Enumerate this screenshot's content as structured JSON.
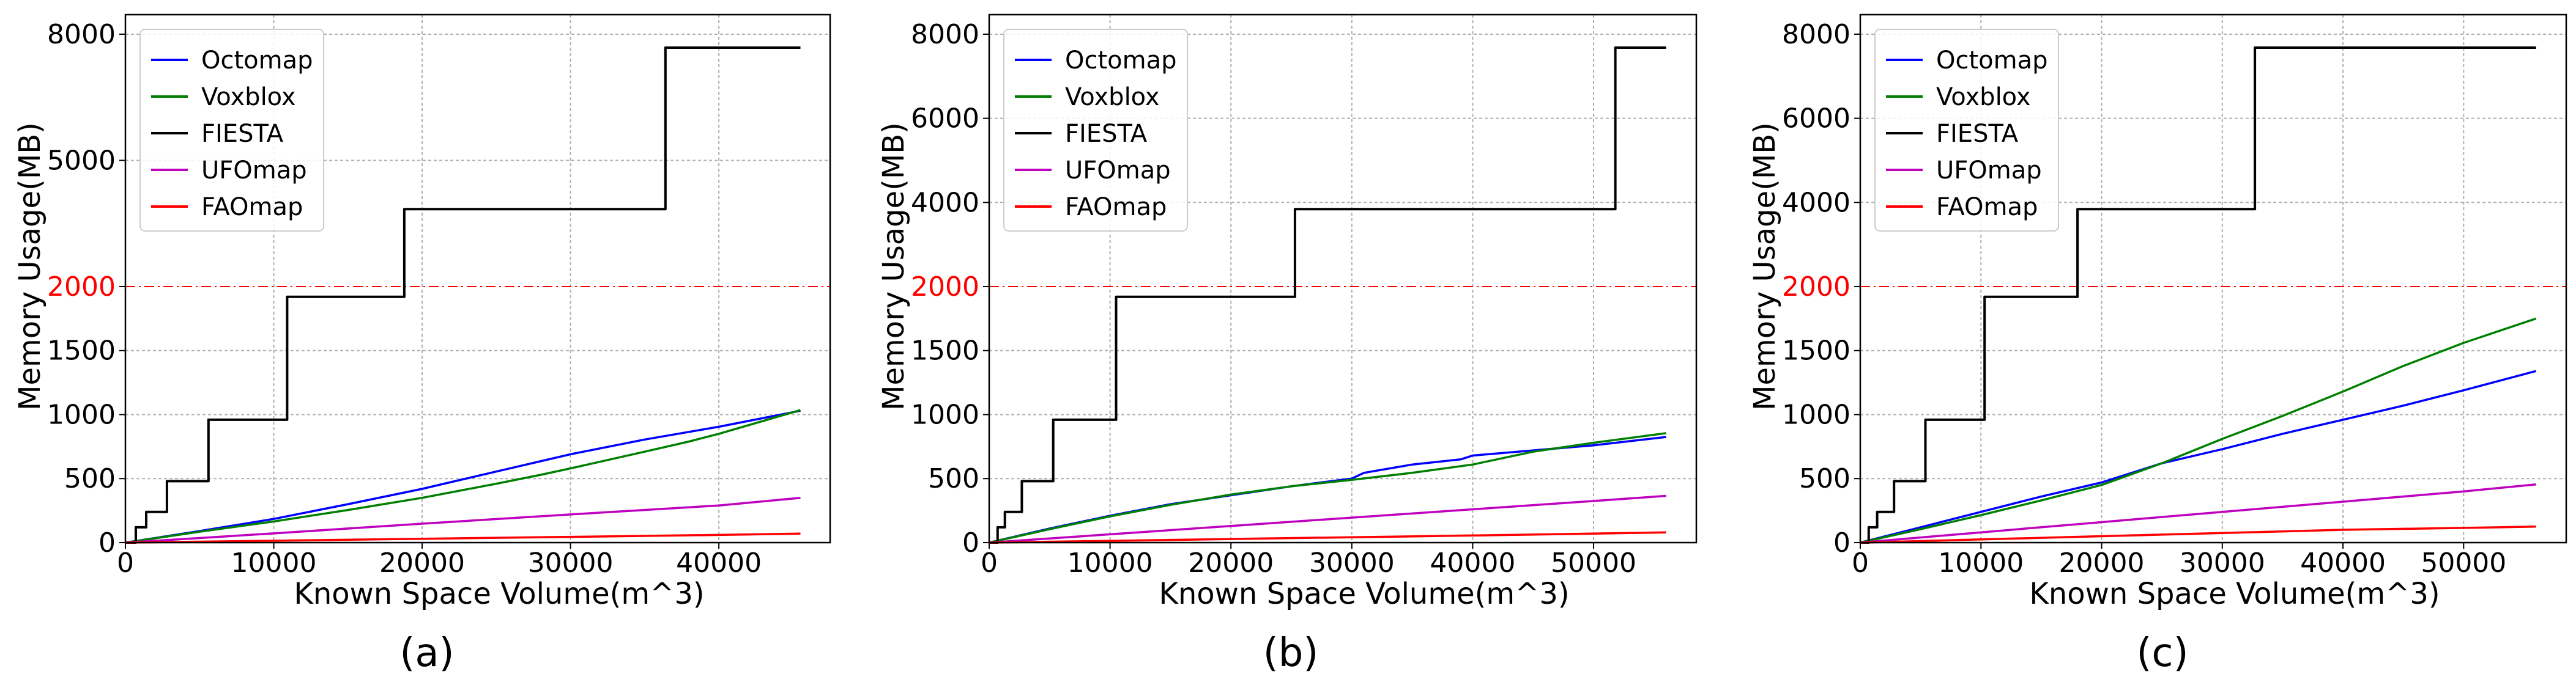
{
  "colors": {
    "Octomap": "#0000ff",
    "Voxblox": "#008000",
    "FIESTA": "#000000",
    "UFOmap": "#bf00bf",
    "FAOmap": "#ff0000",
    "threshold_line": "#ff0000",
    "threshold_tick": "#ff0000",
    "grid": "#b0b0b0"
  },
  "shared": {
    "ylabel": "Memory Usage(MB)",
    "xlabel": "Known Space Volume(m^3)",
    "threshold_mb": 2000
  },
  "chart_data": [
    {
      "type": "line",
      "caption": "(a)",
      "xlabel": "Known Space Volume(m^3)",
      "ylabel": "Memory Usage(MB)",
      "xlim": [
        0,
        47500
      ],
      "x_ticks": [
        0,
        10000,
        20000,
        30000,
        40000
      ],
      "y_scale": "piecewise: linear 0-2000 below threshold, linear 2000-8000 above",
      "y_ticks": [
        0,
        500,
        1000,
        1500,
        2000,
        5000,
        8000
      ],
      "y_tick_labels": [
        "0",
        "500",
        "1000",
        "1500",
        "2000",
        "5000",
        "8000"
      ],
      "threshold": 2000,
      "legend": {
        "position": "upper-left",
        "entries": [
          "Octomap",
          "Voxblox",
          "FIESTA",
          "UFOmap",
          "FAOmap"
        ]
      },
      "series": [
        {
          "name": "Octomap",
          "x": [
            0,
            5000,
            10000,
            15000,
            20000,
            25000,
            30000,
            35000,
            40000,
            45500
          ],
          "y": [
            0,
            90,
            185,
            300,
            420,
            555,
            690,
            805,
            905,
            1030
          ]
        },
        {
          "name": "Voxblox",
          "x": [
            0,
            5000,
            10000,
            15000,
            20000,
            25000,
            28000,
            30000,
            35000,
            38000,
            40000,
            45500
          ],
          "y": [
            0,
            85,
            165,
            255,
            350,
            460,
            530,
            580,
            710,
            790,
            850,
            1035
          ]
        },
        {
          "name": "FIESTA",
          "x": [
            0,
            700,
            700,
            1400,
            1400,
            2800,
            2800,
            5600,
            5600,
            10900,
            10900,
            18800,
            18800,
            36400,
            36400,
            45500
          ],
          "y": [
            0,
            0,
            120,
            120,
            240,
            240,
            480,
            480,
            960,
            960,
            1920,
            1920,
            3840,
            3840,
            7680,
            7680
          ]
        },
        {
          "name": "UFOmap",
          "x": [
            0,
            10000,
            20000,
            30000,
            40000,
            45500
          ],
          "y": [
            0,
            72,
            148,
            220,
            290,
            350
          ]
        },
        {
          "name": "FAOmap",
          "x": [
            0,
            10000,
            20000,
            30000,
            40000,
            45500
          ],
          "y": [
            0,
            15,
            30,
            45,
            60,
            70
          ]
        }
      ]
    },
    {
      "type": "line",
      "caption": "(b)",
      "xlabel": "Known Space Volume(m^3)",
      "ylabel": "Memory Usage(MB)",
      "xlim": [
        0,
        58500
      ],
      "x_ticks": [
        0,
        10000,
        20000,
        30000,
        40000,
        50000
      ],
      "y_scale": "piecewise: linear 0-2000 below threshold, linear 2000-8000 above",
      "y_ticks": [
        0,
        500,
        1000,
        1500,
        2000,
        4000,
        6000,
        8000
      ],
      "y_tick_labels": [
        "0",
        "500",
        "1000",
        "1500",
        "2000",
        "4000",
        "6000",
        "8000"
      ],
      "threshold": 2000,
      "legend": {
        "position": "upper-left",
        "entries": [
          "Octomap",
          "Voxblox",
          "FIESTA",
          "UFOmap",
          "FAOmap"
        ]
      },
      "series": [
        {
          "name": "Octomap",
          "x": [
            0,
            5000,
            10000,
            15000,
            20000,
            25000,
            30000,
            31000,
            35000,
            39000,
            40000,
            45000,
            50000,
            56000
          ],
          "y": [
            0,
            110,
            210,
            300,
            370,
            440,
            500,
            545,
            610,
            650,
            680,
            720,
            760,
            825
          ]
        },
        {
          "name": "Voxblox",
          "x": [
            0,
            5000,
            10000,
            15000,
            20000,
            25000,
            30000,
            35000,
            40000,
            45000,
            50000,
            56000
          ],
          "y": [
            0,
            105,
            205,
            295,
            375,
            440,
            490,
            545,
            610,
            710,
            780,
            855
          ]
        },
        {
          "name": "FIESTA",
          "x": [
            0,
            700,
            700,
            1300,
            1300,
            2700,
            2700,
            5300,
            5300,
            10500,
            10500,
            25300,
            25300,
            51800,
            51800,
            56000
          ],
          "y": [
            0,
            0,
            120,
            120,
            240,
            240,
            480,
            480,
            960,
            960,
            1920,
            1920,
            3840,
            3840,
            7680,
            7680
          ]
        },
        {
          "name": "UFOmap",
          "x": [
            0,
            10000,
            20000,
            30000,
            40000,
            50000,
            56000
          ],
          "y": [
            0,
            65,
            130,
            195,
            260,
            325,
            365
          ]
        },
        {
          "name": "FAOmap",
          "x": [
            0,
            10000,
            20000,
            30000,
            40000,
            50000,
            56000
          ],
          "y": [
            0,
            14,
            28,
            42,
            56,
            70,
            80
          ]
        }
      ]
    },
    {
      "type": "line",
      "caption": "(c)",
      "xlabel": "Known Space Volume(m^3)",
      "ylabel": "Memory Usage(MB)",
      "xlim": [
        0,
        58500
      ],
      "x_ticks": [
        0,
        10000,
        20000,
        30000,
        40000,
        50000
      ],
      "y_scale": "piecewise: linear 0-2000 below threshold, linear 2000-8000 above",
      "y_ticks": [
        0,
        500,
        1000,
        1500,
        2000,
        4000,
        6000,
        8000
      ],
      "y_tick_labels": [
        "0",
        "500",
        "1000",
        "1500",
        "2000",
        "4000",
        "6000",
        "8000"
      ],
      "threshold": 2000,
      "legend": {
        "position": "upper-left",
        "entries": [
          "Octomap",
          "Voxblox",
          "FIESTA",
          "UFOmap",
          "FAOmap"
        ]
      },
      "series": [
        {
          "name": "Octomap",
          "x": [
            0,
            5000,
            10000,
            15000,
            20000,
            25000,
            30000,
            35000,
            40000,
            45000,
            50000,
            56000
          ],
          "y": [
            0,
            120,
            240,
            360,
            470,
            620,
            730,
            850,
            960,
            1070,
            1190,
            1340
          ]
        },
        {
          "name": "Voxblox",
          "x": [
            0,
            5000,
            10000,
            15000,
            20000,
            25000,
            30000,
            35000,
            40000,
            45000,
            50000,
            56000
          ],
          "y": [
            0,
            105,
            215,
            330,
            450,
            620,
            810,
            990,
            1180,
            1380,
            1560,
            1750
          ]
        },
        {
          "name": "FIESTA",
          "x": [
            0,
            700,
            700,
            1400,
            1400,
            2800,
            2800,
            5400,
            5400,
            10300,
            10300,
            18000,
            18000,
            32700,
            32700,
            56000
          ],
          "y": [
            0,
            0,
            120,
            120,
            240,
            240,
            480,
            480,
            960,
            960,
            1920,
            1920,
            3840,
            3840,
            7680,
            7680
          ]
        },
        {
          "name": "UFOmap",
          "x": [
            0,
            10000,
            20000,
            30000,
            40000,
            50000,
            56000
          ],
          "y": [
            0,
            80,
            160,
            240,
            320,
            400,
            455
          ]
        },
        {
          "name": "FAOmap",
          "x": [
            0,
            10000,
            20000,
            30000,
            40000,
            50000,
            56000
          ],
          "y": [
            0,
            25,
            50,
            75,
            100,
            115,
            125
          ]
        }
      ]
    }
  ]
}
